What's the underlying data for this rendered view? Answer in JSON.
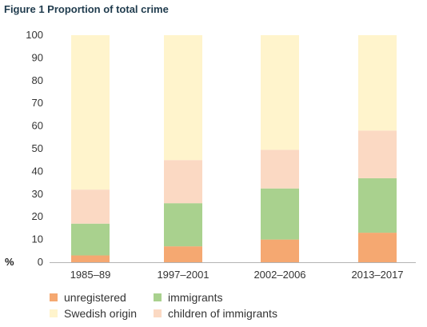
{
  "title": "Figure 1 Proportion of total crime",
  "chart_data": {
    "type": "bar",
    "stacked": true,
    "title": "Figure 1 Proportion of total crime",
    "xlabel": "",
    "ylabel": "%",
    "ylim": [
      0,
      100
    ],
    "yticks": [
      0,
      10,
      20,
      30,
      40,
      50,
      60,
      70,
      80,
      90,
      100
    ],
    "categories": [
      "1985–89",
      "1997–2001",
      "2002–2006",
      "2013–2017"
    ],
    "series": [
      {
        "name": "unregistered",
        "color": "#f5a871",
        "values": [
          3,
          7,
          10,
          13
        ]
      },
      {
        "name": "immigrants",
        "color": "#a9d18e",
        "values": [
          14,
          19,
          22.5,
          24
        ]
      },
      {
        "name": "children of immigrants",
        "color": "#fbd9c3",
        "values": [
          15,
          19,
          17,
          21
        ]
      },
      {
        "name": "Swedish origin",
        "color": "#fff4cc",
        "values": [
          68,
          55,
          50.5,
          42
        ]
      }
    ],
    "legend_order": [
      0,
      1,
      3,
      2
    ],
    "grid": false,
    "legend_position": "bottom"
  }
}
